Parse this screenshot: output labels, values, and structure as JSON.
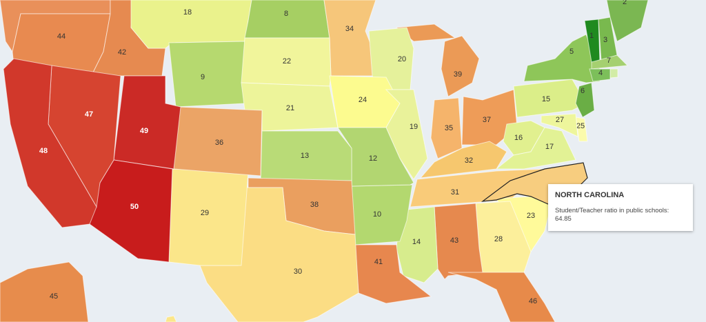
{
  "states": [
    {
      "label": 44,
      "color": "#e88a50"
    },
    {
      "label": 42,
      "color": "#e68a50"
    },
    {
      "label": 18,
      "color": "#eaf28c"
    },
    {
      "label": 8,
      "color": "#a6cf63"
    },
    {
      "label": 34,
      "color": "#f6c67a"
    },
    {
      "label": 20,
      "color": "#e5f19b"
    },
    {
      "label": 39,
      "color": "#eb9a56"
    },
    {
      "label": 9,
      "color": "#b6d96f"
    },
    {
      "label": 22,
      "color": "#f1f59b"
    },
    {
      "label": 21,
      "color": "#edf49a"
    },
    {
      "label": 24,
      "color": "#fcfb8f"
    },
    {
      "label": 19,
      "color": "#e9f29a"
    },
    {
      "label": 35,
      "color": "#f5b46b"
    },
    {
      "label": 37,
      "color": "#ee9c58"
    },
    {
      "label": 15,
      "color": "#dbee89"
    },
    {
      "label": 5,
      "color": "#8ec659"
    },
    {
      "label": 1,
      "color": "#1f8a1f"
    },
    {
      "label": 3,
      "color": "#79b94e"
    },
    {
      "label": 2,
      "color": "#7bb752"
    },
    {
      "label": 7,
      "color": "#a5d070"
    },
    {
      "label": 4,
      "color": "#7cbf5a"
    },
    {
      "label": 6,
      "color": "#6aae45"
    },
    {
      "label": 25,
      "color": "#fbfbac"
    },
    {
      "label": 27,
      "color": "#eef69c"
    },
    {
      "label": 16,
      "color": "#e1f08f"
    },
    {
      "label": 17,
      "color": "#e2f295"
    },
    {
      "label": 32,
      "color": "#f6c76e"
    },
    {
      "label": 31,
      "color": "#f9cb79"
    },
    {
      "label": 23,
      "color": "#fffa9a"
    },
    {
      "label": 28,
      "color": "#fcef9b"
    },
    {
      "label": 43,
      "color": "#e6894e"
    },
    {
      "label": 14,
      "color": "#d7ec8d"
    },
    {
      "label": 46,
      "color": "#e78a4a"
    },
    {
      "label": 41,
      "color": "#e7874e"
    },
    {
      "label": 10,
      "color": "#b3d86f"
    },
    {
      "label": 12,
      "color": "#b2d671"
    },
    {
      "label": 13,
      "color": "#b9db77"
    },
    {
      "label": 38,
      "color": "#ea9f5f"
    },
    {
      "label": 30,
      "color": "#fbdd84"
    },
    {
      "label": 29,
      "color": "#fbe68a"
    },
    {
      "label": 36,
      "color": "#eba466"
    },
    {
      "label": 49,
      "color": "#cb2a26"
    },
    {
      "label": 50,
      "color": "#c81c1c"
    },
    {
      "label": 47,
      "color": "#d64430"
    },
    {
      "label": 48,
      "color": "#d1382b"
    },
    {
      "label": 45,
      "color": "#e78c4c"
    }
  ],
  "tooltip": {
    "title": "NORTH CAROLINA",
    "label": "Student/Teacher ratio in public schools:",
    "value": "64.85"
  }
}
